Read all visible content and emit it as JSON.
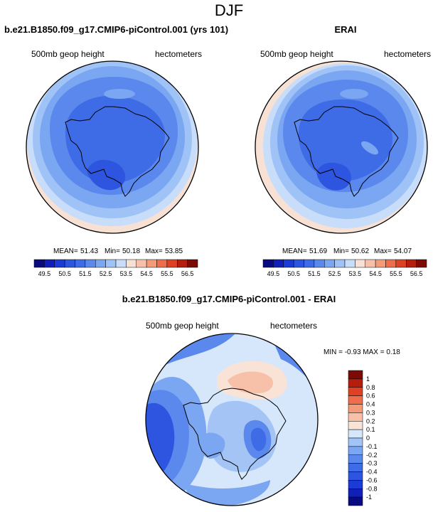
{
  "figure_title": "DJF",
  "chart_data": [
    {
      "type": "heatmap",
      "projection": "south-polar-stereographic",
      "title": "b.e21.B1850.f09_g17.CMIP6-piControl.001 (yrs 101)",
      "left_label": "500mb geop height",
      "right_label": "hectometers",
      "stats": {
        "mean_label": "MEAN=",
        "mean": "51.43",
        "min_label": "Min=",
        "min": "50.18",
        "max_label": "Max=",
        "max": "53.85"
      },
      "colorbar": {
        "orientation": "horizontal",
        "levels": [
          "49.5",
          "50",
          "50.5",
          "51",
          "51.5",
          "52",
          "52.5",
          "53",
          "53.5",
          "54",
          "54.5",
          "55",
          "55.5",
          "56",
          "56.5"
        ],
        "tick_labels": [
          "49.5",
          "50.5",
          "51.5",
          "52.5",
          "53.5",
          "54.5",
          "55.5",
          "56.5"
        ]
      }
    },
    {
      "type": "heatmap",
      "projection": "south-polar-stereographic",
      "title": "ERAI",
      "left_label": "500mb geop height",
      "right_label": "hectometers",
      "stats": {
        "mean_label": "MEAN=",
        "mean": "51.69",
        "min_label": "Min=",
        "min": "50.62",
        "max_label": "Max=",
        "max": "54.07"
      },
      "colorbar": {
        "orientation": "horizontal",
        "levels": [
          "49.5",
          "50",
          "50.5",
          "51",
          "51.5",
          "52",
          "52.5",
          "53",
          "53.5",
          "54",
          "54.5",
          "55",
          "55.5",
          "56",
          "56.5"
        ],
        "tick_labels": [
          "49.5",
          "50.5",
          "51.5",
          "52.5",
          "53.5",
          "54.5",
          "55.5",
          "56.5"
        ]
      }
    },
    {
      "type": "heatmap",
      "projection": "south-polar-stereographic",
      "title": "b.e21.B1850.f09_g17.CMIP6-piControl.001 - ERAI",
      "left_label": "500mb geop height",
      "right_label": "hectometers",
      "stats_text": "MIN =  -0.93 MAX =  0.18",
      "colorbar": {
        "orientation": "vertical",
        "tick_labels": [
          "1",
          "0.8",
          "0.6",
          "0.4",
          "0.3",
          "0.2",
          "0.1",
          "0",
          "-0.1",
          "-0.2",
          "-0.3",
          "-0.4",
          "-0.6",
          "-0.8",
          "-1"
        ]
      }
    }
  ],
  "colors": {
    "abs_scale": [
      "#0a0a80",
      "#0f1fb8",
      "#1c3ad6",
      "#2d55e0",
      "#3e6ce6",
      "#5a88ec",
      "#7aa6f2",
      "#9fc3f7",
      "#c8ddfa",
      "#f7e0d4",
      "#f6c1a8",
      "#f39a78",
      "#ee6d4a",
      "#de4225",
      "#b51d0e",
      "#7c0a05"
    ],
    "diff_scale": [
      "#0a0a80",
      "#0f1fb8",
      "#1c3ad6",
      "#2d55e0",
      "#3e6ce6",
      "#5a88ec",
      "#7aa6f2",
      "#a3c4f5",
      "#d6e6fb",
      "#f9e3d6",
      "#f6c1a8",
      "#f39a78",
      "#ee6d4a",
      "#de4225",
      "#b51d0e",
      "#7c0a05"
    ]
  }
}
